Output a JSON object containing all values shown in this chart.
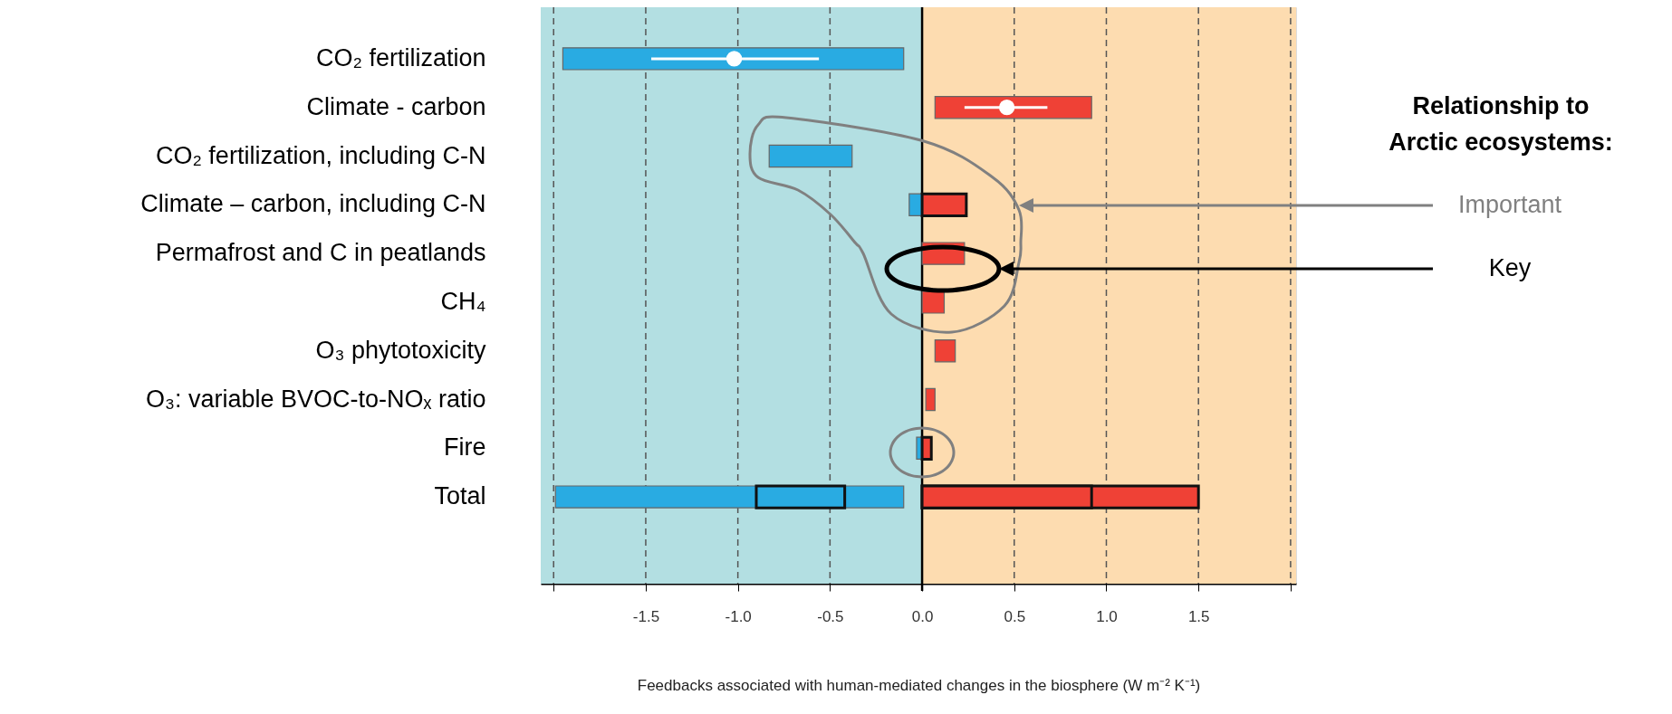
{
  "chart_data": {
    "type": "bar",
    "orientation": "horizontal",
    "categories": [
      "CO₂ fertilization",
      "Climate - carbon",
      "CO₂ fertilization, including C-N",
      "Climate – carbon, including C-N",
      "Permafrost and C in peatlands",
      "CH₄",
      "O₃ phytotoxicity",
      "O₃: variable BVOC-to-NOₓ ratio",
      "Fire",
      "Total"
    ],
    "series": [
      {
        "color": "#29abe2",
        "base": [
          -1.95,
          null,
          -0.83,
          -0.07,
          null,
          null,
          null,
          null,
          -0.03,
          -1.99
        ],
        "values": [
          1.85,
          null,
          0.45,
          0.07,
          null,
          null,
          null,
          null,
          0.03,
          1.89
        ]
      },
      {
        "color": "#ef4136",
        "base": [
          null,
          0.07,
          null,
          0,
          0,
          0,
          0.07,
          0.02,
          0,
          0
        ],
        "values": [
          null,
          0.85,
          null,
          0.24,
          0.23,
          0.12,
          0.11,
          0.05,
          0.05,
          1.5
        ]
      },
      {
        "color": "#29abe2",
        "base": [
          null,
          null,
          null,
          null,
          null,
          null,
          null,
          null,
          null,
          -0.9
        ],
        "values": [
          null,
          null,
          null,
          null,
          null,
          null,
          null,
          null,
          null,
          0.48
        ]
      },
      {
        "color": "#ef4136",
        "base": [
          null,
          null,
          null,
          null,
          null,
          null,
          null,
          null,
          null,
          0
        ],
        "values": [
          null,
          null,
          null,
          null,
          null,
          null,
          null,
          null,
          null,
          0.92
        ]
      },
      {
        "type": "scatter",
        "color": "#ffffff",
        "marker": "circle",
        "values": [
          -1.02,
          0.46,
          null,
          null,
          null,
          null,
          null,
          null,
          null,
          null
        ],
        "errors": [
          [
            -1.47,
            -0.56
          ],
          [
            0.23,
            0.68
          ],
          null,
          null,
          null,
          null,
          null,
          null,
          null,
          null
        ]
      }
    ],
    "xlabel": "Feedbacks associated with human-mediated changes in the biosphere (W m⁻² K⁻¹)",
    "xlim": [
      -2.07,
      2.03
    ],
    "xticks": [
      {
        "value": -2,
        "label": null
      },
      -1.5,
      {
        "value": -1,
        "label": "-1.0"
      },
      -0.5,
      {
        "value": 0,
        "label": "0.0"
      },
      0.5,
      {
        "value": 1,
        "label": "1.0"
      },
      1.5,
      {
        "value": 2,
        "label": null
      }
    ],
    "grid": "x",
    "ref_lines": [
      {
        "axis": "x",
        "value": 0,
        "color": "#000000"
      }
    ],
    "bands": [
      {
        "axis": "x",
        "from": -2.07,
        "to": 0,
        "color": "#b3dfe2"
      },
      {
        "axis": "x",
        "from": 0,
        "to": 2.03,
        "color": "#fddcb0"
      }
    ],
    "annotations": [
      "Relationship to\nArctic ecosystems:",
      "Important",
      "Key"
    ]
  }
}
